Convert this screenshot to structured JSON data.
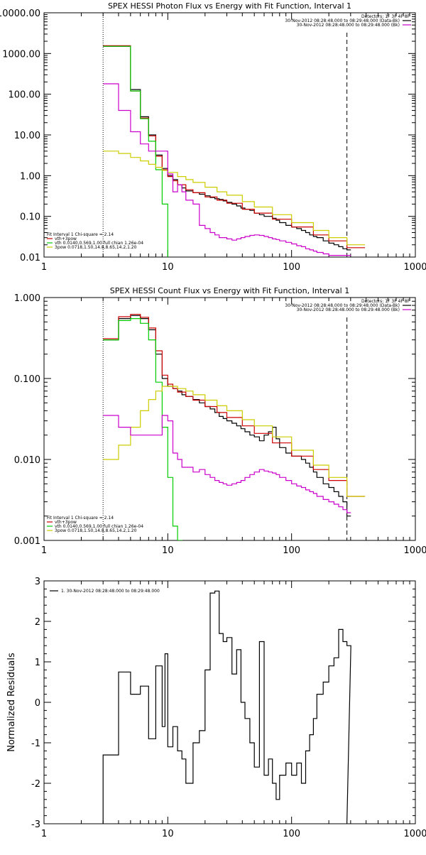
{
  "chart_data": [
    {
      "type": "line",
      "title": "SPEX HESSI Photon Flux vs Energy with Fit Function, Interval 1",
      "xlabel": "",
      "ylabel": "",
      "xscale": "log",
      "yscale": "log",
      "xlim": [
        1,
        1000
      ],
      "ylim": [
        0.01,
        10000
      ],
      "x_ticks": [
        "1",
        "10",
        "100",
        "1000"
      ],
      "y_ticks": [
        "10000.00",
        "1000.00",
        "100.00",
        "10.00",
        "1.00",
        "0.10",
        "0.01"
      ],
      "header": [
        "Detectors: 1F 3F 4F 8F",
        "30-Nov-2012 08:28:48.000 to 08:29:48.000 (Data-Bk)",
        "30-Nov-2012 08:28:48.000 to 08:29:48.000 (Bk)"
      ],
      "legend_header": "Fit Interval 1    Chi-square = 2.14",
      "fit_range_lines": [
        3,
        280
      ],
      "series": [
        {
          "name": "30-Nov-2012 08:28:48.000 to 08:29:48.000 (Data-Bk)",
          "color": "#000000",
          "x": [
            3,
            3.5,
            4,
            4.5,
            5,
            5.5,
            6,
            6.5,
            7,
            7.5,
            8,
            8.5,
            9,
            9.5,
            10,
            11,
            12,
            13,
            14,
            16,
            18,
            20,
            22,
            24,
            26,
            28,
            30,
            33,
            36,
            39,
            42,
            46,
            50,
            55,
            60,
            65,
            70,
            75,
            80,
            90,
            100,
            110,
            120,
            130,
            140,
            150,
            160,
            180,
            200,
            220,
            240,
            260,
            280
          ],
          "y": [
            1500,
            1500,
            1500,
            1500,
            130,
            130,
            28,
            28,
            10,
            10,
            3.2,
            3.2,
            1.5,
            1.5,
            1.0,
            0.8,
            0.6,
            0.5,
            0.42,
            0.38,
            0.35,
            0.32,
            0.29,
            0.27,
            0.26,
            0.24,
            0.22,
            0.2,
            0.18,
            0.16,
            0.15,
            0.14,
            0.12,
            0.11,
            0.1,
            0.1,
            0.09,
            0.08,
            0.07,
            0.06,
            0.055,
            0.05,
            0.045,
            0.04,
            0.035,
            0.032,
            0.03,
            0.025,
            0.022,
            0.02,
            0.018,
            0.016,
            0.015
          ]
        },
        {
          "name": "vth+3pow",
          "color": "#cc0000",
          "x": [
            3,
            3.5,
            4,
            4.5,
            5,
            5.5,
            6,
            6.5,
            7,
            7.5,
            8,
            8.5,
            9,
            9.5,
            10,
            11,
            12,
            14,
            16,
            20,
            25,
            30,
            40,
            50,
            70,
            100,
            150,
            200,
            280
          ],
          "y": [
            1550,
            1550,
            1550,
            1550,
            120,
            120,
            26,
            26,
            9.5,
            9.5,
            3.0,
            3.0,
            1.4,
            1.4,
            0.95,
            0.75,
            0.6,
            0.45,
            0.38,
            0.3,
            0.25,
            0.21,
            0.15,
            0.12,
            0.085,
            0.055,
            0.035,
            0.025,
            0.017
          ]
        },
        {
          "name": "vth 0.0140,0.569,1.00  full chian 1.26e-04",
          "color": "#00cc00",
          "x": [
            3,
            3.5,
            4,
            4.5,
            5,
            5.5,
            6,
            6.5,
            7,
            7.5,
            8,
            8.5,
            9,
            9.5,
            10
          ],
          "y": [
            1500,
            1500,
            1500,
            1500,
            120,
            120,
            25,
            25,
            7,
            7,
            1.4,
            1.4,
            0.2,
            0.2,
            0.008
          ]
        },
        {
          "name": "3pow 0.0718,1.50,14.8,8.65,14.2,1.20",
          "color": "#cccc00",
          "x": [
            3,
            4,
            5,
            6,
            7,
            8,
            9,
            10,
            12,
            14,
            16,
            20,
            25,
            30,
            40,
            50,
            70,
            100,
            150,
            200,
            280
          ],
          "y": [
            4.0,
            3.5,
            2.8,
            2.3,
            1.9,
            1.6,
            1.35,
            1.2,
            0.95,
            0.8,
            0.68,
            0.52,
            0.4,
            0.33,
            0.23,
            0.17,
            0.11,
            0.07,
            0.045,
            0.03,
            0.02
          ]
        },
        {
          "name": "30-Nov-2012 08:28:48.000 to 08:29:48.000 (Bk)",
          "color": "#cc00cc",
          "x": [
            3,
            3.5,
            4,
            4.5,
            5,
            5.5,
            6,
            6.5,
            7,
            7.5,
            8,
            8.5,
            9,
            9.5,
            10,
            11,
            12,
            13,
            14,
            16,
            18,
            20,
            22,
            24,
            26,
            28,
            30,
            33,
            36,
            39,
            42,
            46,
            50,
            55,
            60,
            65,
            70,
            75,
            80,
            90,
            100,
            110,
            120,
            130,
            140,
            150,
            160,
            180,
            200,
            220,
            240,
            260,
            280
          ],
          "y": [
            180,
            180,
            40,
            40,
            12,
            12,
            6,
            6,
            4,
            4,
            4,
            4,
            4,
            4,
            1.1,
            0.4,
            0.6,
            0.4,
            0.25,
            0.2,
            0.06,
            0.05,
            0.04,
            0.035,
            0.03,
            0.03,
            0.028,
            0.026,
            0.028,
            0.03,
            0.032,
            0.034,
            0.035,
            0.034,
            0.032,
            0.03,
            0.028,
            0.027,
            0.025,
            0.023,
            0.021,
            0.019,
            0.018,
            0.016,
            0.015,
            0.014,
            0.013,
            0.012,
            0.011,
            0.011,
            0.011,
            0.011,
            0.011
          ]
        }
      ]
    },
    {
      "type": "line",
      "title": "SPEX HESSI Count Flux vs Energy with Fit Function, Interval 1",
      "xlabel": "",
      "ylabel": "",
      "xscale": "log",
      "yscale": "log",
      "xlim": [
        1,
        1000
      ],
      "ylim": [
        0.001,
        1
      ],
      "x_ticks": [
        "1",
        "10",
        "100",
        "1000"
      ],
      "y_ticks": [
        "1.000",
        "0.100",
        "0.010",
        "0.001"
      ],
      "header": [
        "Detectors: 1F 3F 4F 8F",
        "30-Nov-2012 08:28:48.000 to 08:29:48.000 (Data-Bk)",
        "30-Nov-2012 08:28:48.000 to 08:29:48.000 (Bk)"
      ],
      "legend_header": "Fit Interval 1    Chi-square = 2.14",
      "fit_range_lines": [
        3,
        280
      ],
      "series": [
        {
          "name": "30-Nov-2012 08:28:48.000 to 08:29:48.000 (Data-Bk)",
          "color": "#000000",
          "x": [
            3,
            3.5,
            4,
            4.5,
            5,
            5.5,
            6,
            6.5,
            7,
            7.5,
            8,
            8.5,
            9,
            9.5,
            10,
            11,
            12,
            13,
            14,
            16,
            18,
            20,
            22,
            24,
            26,
            28,
            30,
            33,
            36,
            39,
            42,
            46,
            50,
            55,
            60,
            65,
            70,
            75,
            80,
            90,
            100,
            110,
            120,
            130,
            140,
            150,
            160,
            180,
            200,
            220,
            240,
            260,
            280
          ],
          "y": [
            0.3,
            0.3,
            0.55,
            0.55,
            0.6,
            0.6,
            0.55,
            0.55,
            0.4,
            0.4,
            0.2,
            0.2,
            0.1,
            0.1,
            0.08,
            0.075,
            0.07,
            0.063,
            0.06,
            0.055,
            0.05,
            0.045,
            0.042,
            0.038,
            0.034,
            0.032,
            0.03,
            0.028,
            0.026,
            0.024,
            0.022,
            0.02,
            0.019,
            0.017,
            0.02,
            0.022,
            0.025,
            0.018,
            0.014,
            0.012,
            0.011,
            0.011,
            0.01,
            0.009,
            0.008,
            0.007,
            0.006,
            0.005,
            0.0045,
            0.004,
            0.0035,
            0.003,
            0.002
          ]
        },
        {
          "name": "vth+3pow",
          "color": "#cc0000",
          "x": [
            3,
            3.5,
            4,
            4.5,
            5,
            5.5,
            6,
            6.5,
            7,
            7.5,
            8,
            8.5,
            9,
            9.5,
            10,
            11,
            12,
            14,
            16,
            20,
            25,
            30,
            40,
            50,
            70,
            100,
            150,
            200,
            280
          ],
          "y": [
            0.31,
            0.31,
            0.58,
            0.58,
            0.62,
            0.62,
            0.57,
            0.57,
            0.42,
            0.42,
            0.22,
            0.22,
            0.11,
            0.11,
            0.085,
            0.075,
            0.068,
            0.06,
            0.054,
            0.045,
            0.038,
            0.033,
            0.026,
            0.021,
            0.016,
            0.011,
            0.0075,
            0.0055,
            0.0035
          ]
        },
        {
          "name": "vth 0.0140,0.569,1.00  full chian 1.26e-04",
          "color": "#00cc00",
          "x": [
            3,
            3.5,
            4,
            4.5,
            5,
            5.5,
            6,
            6.5,
            7,
            7.5,
            8,
            8.5,
            9,
            9.5,
            10,
            11,
            12
          ],
          "y": [
            0.3,
            0.3,
            0.52,
            0.52,
            0.55,
            0.55,
            0.48,
            0.48,
            0.3,
            0.3,
            0.09,
            0.09,
            0.025,
            0.025,
            0.006,
            0.0015,
            0.001
          ]
        },
        {
          "name": "3pow 0.0718,1.50,14.8,8.65,14.2,1.20",
          "color": "#cccc00",
          "x": [
            3,
            4,
            5,
            6,
            7,
            8,
            9,
            10,
            12,
            14,
            16,
            20,
            25,
            30,
            40,
            50,
            70,
            100,
            150,
            200,
            280
          ],
          "y": [
            0.01,
            0.015,
            0.025,
            0.04,
            0.055,
            0.07,
            0.08,
            0.08,
            0.075,
            0.07,
            0.063,
            0.054,
            0.046,
            0.04,
            0.031,
            0.026,
            0.019,
            0.013,
            0.0085,
            0.006,
            0.0035
          ]
        },
        {
          "name": "30-Nov-2012 08:28:48.000 to 08:29:48.000 (Bk)",
          "color": "#cc00cc",
          "x": [
            3,
            3.5,
            4,
            4.5,
            5,
            5.5,
            6,
            6.5,
            7,
            7.5,
            8,
            8.5,
            9,
            9.5,
            10,
            11,
            12,
            13,
            14,
            16,
            18,
            20,
            22,
            24,
            26,
            28,
            30,
            33,
            36,
            39,
            42,
            46,
            50,
            55,
            60,
            65,
            70,
            75,
            80,
            90,
            100,
            110,
            120,
            130,
            140,
            150,
            160,
            180,
            200,
            220,
            240,
            260,
            280
          ],
          "y": [
            0.035,
            0.035,
            0.025,
            0.025,
            0.02,
            0.02,
            0.02,
            0.02,
            0.02,
            0.02,
            0.02,
            0.02,
            0.035,
            0.035,
            0.03,
            0.012,
            0.01,
            0.008,
            0.008,
            0.007,
            0.0075,
            0.0065,
            0.006,
            0.0055,
            0.0052,
            0.005,
            0.0048,
            0.005,
            0.0052,
            0.0055,
            0.006,
            0.0065,
            0.007,
            0.0075,
            0.0072,
            0.007,
            0.0068,
            0.0065,
            0.006,
            0.0055,
            0.005,
            0.0047,
            0.0045,
            0.0042,
            0.004,
            0.0038,
            0.0035,
            0.0032,
            0.003,
            0.0028,
            0.0026,
            0.0024,
            0.0022
          ]
        }
      ]
    },
    {
      "type": "line",
      "title": "",
      "xlabel": "",
      "ylabel": "Normalized Residuals",
      "xscale": "log",
      "yscale": "linear",
      "xlim": [
        1,
        1000
      ],
      "ylim": [
        -3,
        3
      ],
      "x_ticks": [
        "1",
        "10",
        "100",
        "1000"
      ],
      "y_ticks": [
        "3",
        "2",
        "1",
        "0",
        "-1",
        "-2",
        "-3"
      ],
      "legend_header": "1. 30-Nov-2012 08:28:48.000 to 08:29:48.000",
      "series": [
        {
          "name": "1. 30-Nov-2012 08:28:48.000 to 08:29:48.000",
          "color": "#000000",
          "x": [
            3,
            3.5,
            4,
            4.5,
            5,
            5.5,
            6,
            6.5,
            7,
            7.5,
            8,
            8.5,
            9,
            9.5,
            10,
            11,
            12,
            13,
            14,
            16,
            18,
            20,
            22,
            24,
            26,
            28,
            30,
            33,
            36,
            39,
            42,
            46,
            50,
            55,
            60,
            65,
            70,
            75,
            80,
            90,
            100,
            110,
            120,
            130,
            140,
            150,
            160,
            180,
            200,
            220,
            240,
            260,
            280
          ],
          "y": [
            -1.3,
            -1.3,
            0.75,
            0.75,
            0.2,
            0.2,
            0.4,
            0.4,
            -0.9,
            -0.9,
            0.9,
            0.9,
            -0.6,
            1.2,
            -1.1,
            -0.6,
            -1.2,
            -1.4,
            -2.0,
            -1.0,
            -0.7,
            0.8,
            2.7,
            2.75,
            1.7,
            1.5,
            1.6,
            0.7,
            1.3,
            0.0,
            -0.4,
            -1.0,
            -1.6,
            1.5,
            -1.8,
            -1.4,
            -2.0,
            -2.4,
            -1.8,
            -1.5,
            -1.8,
            -1.5,
            -2.0,
            -1.2,
            -0.8,
            -0.4,
            0.2,
            0.5,
            0.9,
            1.1,
            1.8,
            1.5,
            1.4
          ]
        }
      ]
    }
  ]
}
